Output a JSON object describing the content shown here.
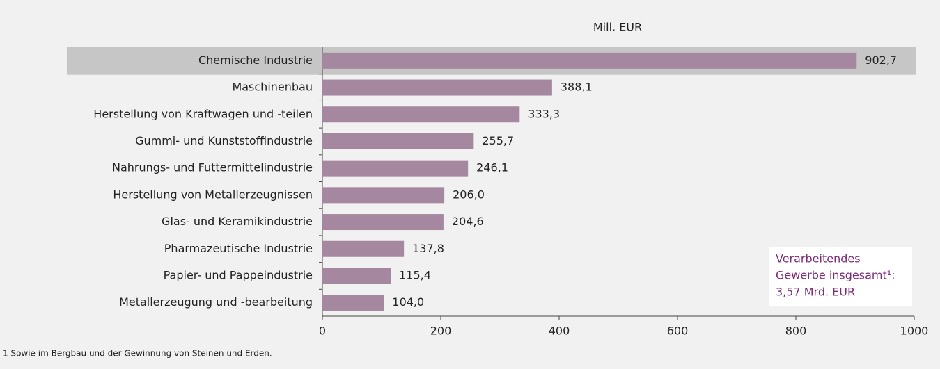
{
  "chart_data": {
    "type": "bar",
    "orientation": "horizontal",
    "axis_label": "Mill. EUR",
    "categories": [
      "Chemische Industrie",
      "Maschinenbau",
      "Herstellung von Kraftwagen und -teilen",
      "Gummi- und Kunststoffindustrie",
      "Nahrungs- und Futtermittelindustrie",
      "Herstellung von Metallerzeugnissen",
      "Glas- und Keramikindustrie",
      "Pharmazeutische Industrie",
      "Papier- und Pappeindustrie",
      "Metallerzeugung und -bearbeitung"
    ],
    "values": [
      902.7,
      388.1,
      333.3,
      255.7,
      246.1,
      206.0,
      204.6,
      137.8,
      115.4,
      104.0
    ],
    "value_labels": [
      "902,7",
      "388,1",
      "333,3",
      "255,7",
      "246,1",
      "206,0",
      "204,6",
      "137,8",
      "115,4",
      "104,0"
    ],
    "color": "#a5889f",
    "highlight": "Chemische Industrie",
    "xlim": [
      0,
      1000
    ],
    "xticks": [
      0,
      200,
      400,
      600,
      800,
      1000
    ],
    "annotation": [
      "Verarbeitendes",
      "Gewerbe insgesamt¹:",
      "3,57 Mrd. EUR"
    ],
    "footnote": "1 Sowie im Bergbau und der Gewinnung von Steinen und Erden."
  }
}
